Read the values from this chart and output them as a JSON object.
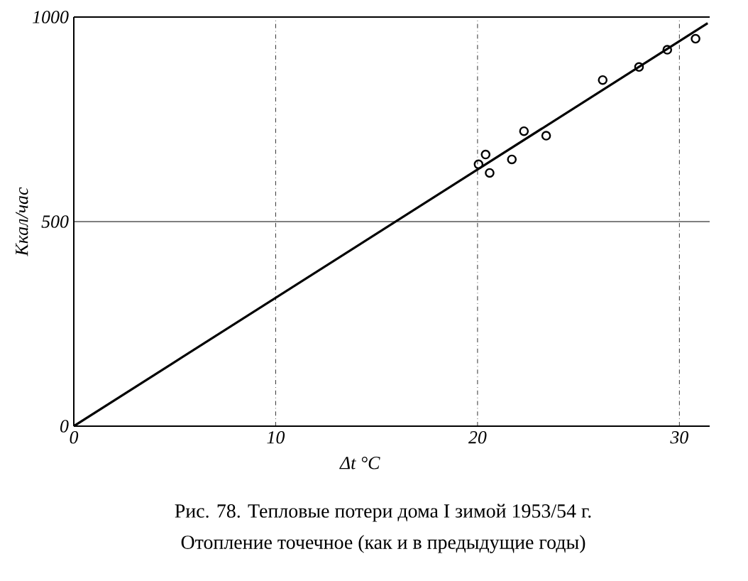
{
  "chart_data": {
    "type": "scatter",
    "xlabel": "Δt °C",
    "ylabel": "Ккал/час",
    "annotations": [
      "Рис. 78. Тепловые потери дома I зимой 1953/54 г.",
      "Отопление точечное (как и в предыдущие годы)"
    ],
    "xlim": [
      0,
      31.5
    ],
    "ylim": [
      0,
      1000
    ],
    "xticks": [
      0,
      10,
      20,
      30
    ],
    "yticks": [
      0,
      500,
      1000
    ],
    "grid": "x",
    "ref_lines": [
      {
        "axis": "y",
        "value": 500,
        "color": "#000000"
      }
    ],
    "series": [
      {
        "marker": "circle",
        "color": "#000000",
        "x": [
          20.05,
          20.4,
          20.6,
          21.7,
          22.3,
          23.4,
          26.2,
          28.0,
          29.4,
          30.8
        ],
        "values": [
          640,
          664,
          619,
          652,
          721,
          710,
          846,
          878,
          920,
          947
        ]
      },
      {
        "type": "line",
        "marker": "none",
        "color": "#000000",
        "x": [
          0,
          31.4
        ],
        "values": [
          0,
          985
        ]
      }
    ]
  }
}
